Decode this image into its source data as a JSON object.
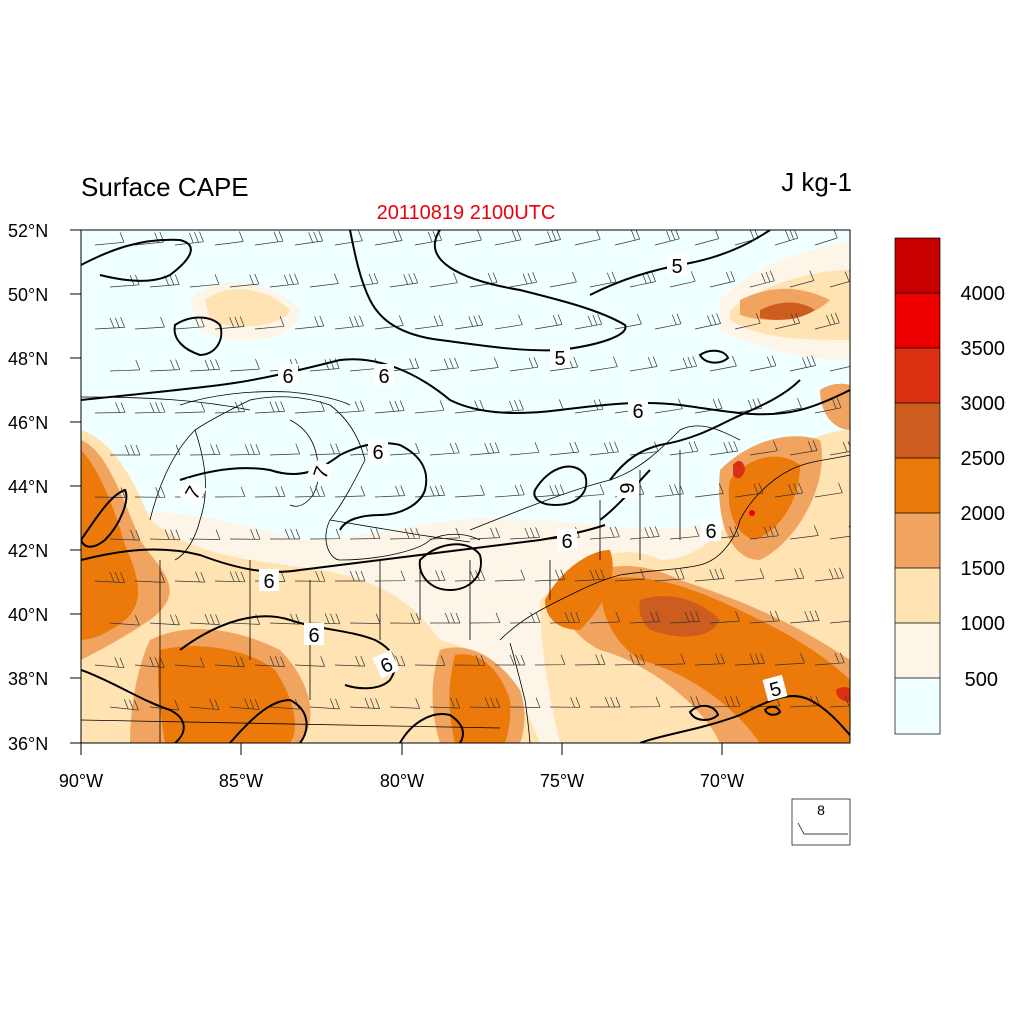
{
  "title": "Surface CAPE",
  "units": "J kg-1",
  "subtitle": "20110819 2100UTC",
  "colors": {
    "subtitle": "#e8000b",
    "frame": "#000000",
    "contour": "#000000",
    "fill_levels": [
      "#f0ffff",
      "#fdf5e8",
      "#ffe3b3",
      "#f0a460",
      "#ec7a0a",
      "#cd5d1e",
      "#dc3012",
      "#ee0000",
      "#c80000"
    ]
  },
  "map": {
    "lat_labels": [
      "52°N",
      "50°N",
      "48°N",
      "46°N",
      "44°N",
      "42°N",
      "40°N",
      "38°N",
      "36°N"
    ],
    "lon_labels": [
      "90°W",
      "85°W",
      "80°W",
      "75°W",
      "70°W"
    ]
  },
  "colorbar": {
    "labels": [
      "4000",
      "3500",
      "3000",
      "2500",
      "2000",
      "1500",
      "1000",
      "500"
    ]
  },
  "contour_labels": [
    "5",
    "5",
    "6",
    "6",
    "6",
    "6",
    "6",
    "6",
    "6",
    "6",
    "6",
    "7",
    "7",
    "5"
  ],
  "reference_vector": {
    "label": "8"
  }
}
